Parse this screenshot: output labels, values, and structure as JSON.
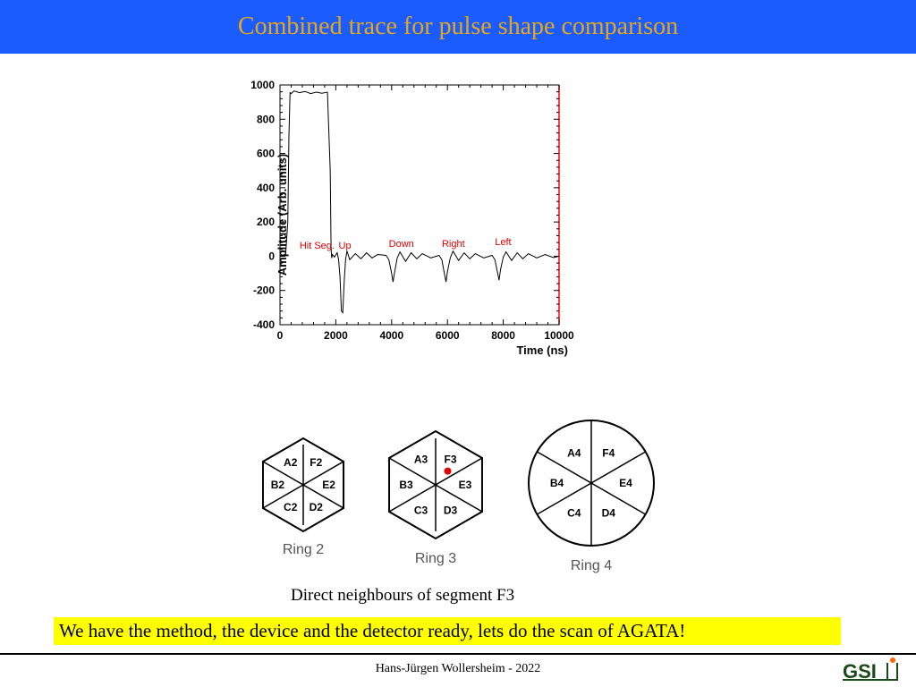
{
  "header": {
    "title": "Combined trace for pulse shape comparison"
  },
  "chart": {
    "type": "line",
    "xlabel": "Time (ns)",
    "ylabel": "Amplitude (Arb. units)",
    "xlim": [
      0,
      10000
    ],
    "ylim": [
      -400,
      1000
    ],
    "xtick_step": 2000,
    "ytick_step": 200,
    "xticks": [
      0,
      2000,
      4000,
      6000,
      8000,
      10000
    ],
    "yticks": [
      -400,
      -200,
      0,
      200,
      400,
      600,
      800,
      1000
    ],
    "line_color": "#000000",
    "line_width": 1,
    "axis_color": "#000000",
    "right_border_color": "#ff0000",
    "background_color": "#ffffff",
    "tick_fontsize": 12,
    "label_fontsize": 13,
    "annotations": [
      {
        "text": "Hit Seg.",
        "x_ns": 700,
        "y_amp": 30
      },
      {
        "text": "Up",
        "x_ns": 2100,
        "y_amp": 30
      },
      {
        "text": "Down",
        "x_ns": 3900,
        "y_amp": 40
      },
      {
        "text": "Right",
        "x_ns": 5800,
        "y_amp": 40
      },
      {
        "text": "Left",
        "x_ns": 7700,
        "y_amp": 50
      }
    ],
    "annotation_color": "#e30000",
    "annotation_fontsize": 11,
    "series": [
      [
        0,
        0
      ],
      [
        100,
        0
      ],
      [
        150,
        10
      ],
      [
        200,
        5
      ],
      [
        280,
        200
      ],
      [
        320,
        700
      ],
      [
        360,
        955
      ],
      [
        400,
        950
      ],
      [
        500,
        965
      ],
      [
        700,
        955
      ],
      [
        900,
        962
      ],
      [
        1100,
        950
      ],
      [
        1300,
        958
      ],
      [
        1500,
        952
      ],
      [
        1700,
        958
      ],
      [
        1800,
        500
      ],
      [
        1830,
        50
      ],
      [
        1850,
        -10
      ],
      [
        1880,
        10
      ],
      [
        1950,
        -5
      ],
      [
        2050,
        20
      ],
      [
        2100,
        -20
      ],
      [
        2150,
        -120
      ],
      [
        2200,
        -320
      ],
      [
        2250,
        -330
      ],
      [
        2300,
        -150
      ],
      [
        2350,
        -20
      ],
      [
        2400,
        30
      ],
      [
        2500,
        -20
      ],
      [
        2700,
        15
      ],
      [
        2900,
        -15
      ],
      [
        3100,
        20
      ],
      [
        3300,
        -10
      ],
      [
        3500,
        10
      ],
      [
        3800,
        5
      ],
      [
        3900,
        -20
      ],
      [
        4000,
        -100
      ],
      [
        4050,
        -150
      ],
      [
        4100,
        -100
      ],
      [
        4200,
        -10
      ],
      [
        4300,
        25
      ],
      [
        4500,
        -30
      ],
      [
        4700,
        20
      ],
      [
        4900,
        -15
      ],
      [
        5100,
        15
      ],
      [
        5400,
        -10
      ],
      [
        5700,
        5
      ],
      [
        5800,
        -20
      ],
      [
        5900,
        -110
      ],
      [
        5950,
        -150
      ],
      [
        6000,
        -90
      ],
      [
        6100,
        -10
      ],
      [
        6200,
        30
      ],
      [
        6400,
        -25
      ],
      [
        6600,
        20
      ],
      [
        6800,
        -15
      ],
      [
        7000,
        15
      ],
      [
        7300,
        -10
      ],
      [
        7600,
        5
      ],
      [
        7700,
        -20
      ],
      [
        7800,
        -100
      ],
      [
        7850,
        -140
      ],
      [
        7900,
        -80
      ],
      [
        8000,
        -5
      ],
      [
        8100,
        25
      ],
      [
        8300,
        -25
      ],
      [
        8500,
        20
      ],
      [
        8700,
        -15
      ],
      [
        8900,
        15
      ],
      [
        9200,
        -10
      ],
      [
        9500,
        10
      ],
      [
        9800,
        -8
      ],
      [
        10000,
        0
      ]
    ]
  },
  "rings": {
    "stroke": "#000000",
    "stroke_width": 2,
    "label_fontsize": 12,
    "caption_color": "#555555",
    "ring2": {
      "label": "Ring 2",
      "shape": "hexagon",
      "radius": 52,
      "segments": [
        "A2",
        "F2",
        "E2",
        "D2",
        "C2",
        "B2"
      ]
    },
    "ring3": {
      "label": "Ring 3",
      "shape": "hexagon",
      "radius": 60,
      "segments": [
        "A3",
        "F3",
        "E3",
        "D3",
        "C3",
        "B3"
      ],
      "marker": {
        "segment": "F3",
        "color": "#e30000",
        "radius": 4
      }
    },
    "ring4": {
      "label": "Ring 4",
      "shape": "circle",
      "radius": 70,
      "segments": [
        "A4",
        "F4",
        "E4",
        "D4",
        "C4",
        "B4"
      ]
    }
  },
  "caption": "Direct neighbours of segment F3",
  "highlight": "We have the method, the device and the detector ready, lets do the scan of AGATA!",
  "footer": "Hans-Jürgen Wollersheim - 2022",
  "logo": {
    "text": "GSI",
    "text_color": "#1a4a1a",
    "accent_color": "#ff6600"
  },
  "colors": {
    "header_bg": "#1a5cff",
    "header_fg": "#e6a817",
    "highlight_bg": "#ffff00"
  }
}
